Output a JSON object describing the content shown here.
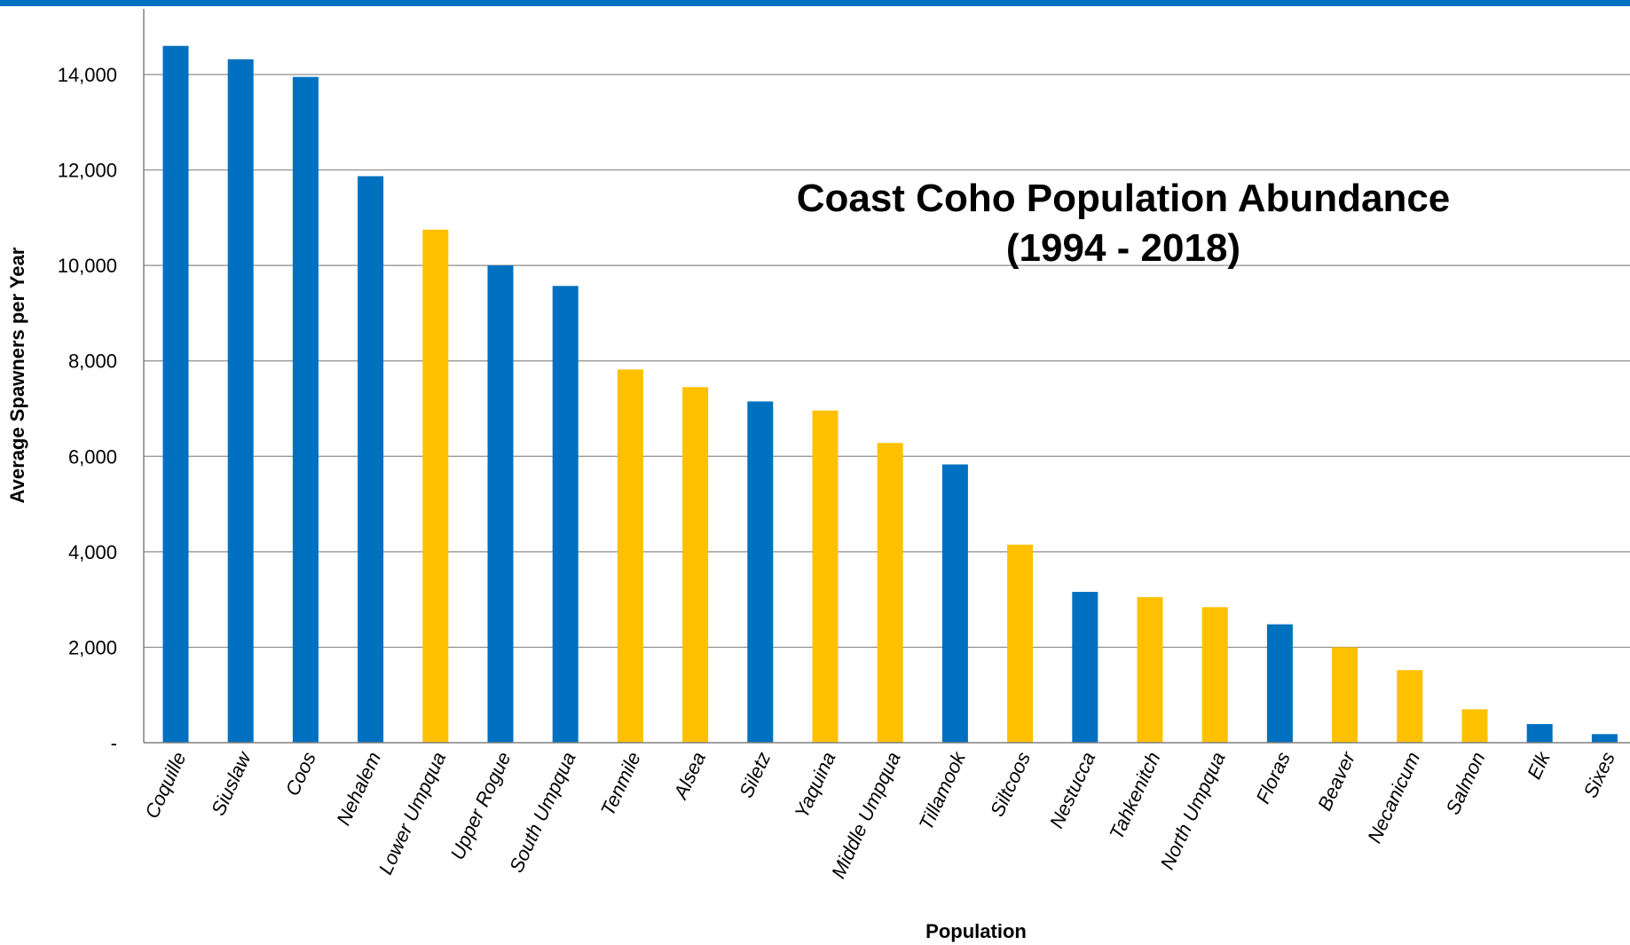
{
  "chart_data": {
    "type": "bar",
    "title": "Coast Coho Population Abundance",
    "subtitle": "(1994 - 2018)",
    "xlabel": "Population",
    "ylabel": "Average Spawners per Year",
    "ylim": [
      0,
      15000
    ],
    "yticks": [
      0,
      2000,
      4000,
      6000,
      8000,
      10000,
      12000,
      14000
    ],
    "ytick_labels": [
      "-",
      "2,000",
      "4,000",
      "6,000",
      "8,000",
      "10,000",
      "12,000",
      "14,000"
    ],
    "grid": true,
    "legend": "none",
    "colors": {
      "blue": "#0070C0",
      "yellow": "#FFC000",
      "header_bar": "#0070C0"
    },
    "categories": [
      "Coquille",
      "Siuslaw",
      "Coos",
      "Nehalem",
      "Lower Umpqua",
      "Upper Rogue",
      "South Umpqua",
      "Tenmile",
      "Alsea",
      "Siletz",
      "Yaquina",
      "Middle Umpqua",
      "Tillamook",
      "Siltcoos",
      "Nestucca",
      "Tahkenitch",
      "North Umpqua",
      "Floras",
      "Beaver",
      "Necanicum",
      "Salmon",
      "Elk",
      "Sixes"
    ],
    "values": [
      14600,
      14320,
      13950,
      11870,
      10750,
      10000,
      9570,
      7820,
      7450,
      7150,
      6960,
      6280,
      5830,
      4150,
      3160,
      3050,
      2840,
      2480,
      2000,
      1520,
      700,
      390,
      180
    ],
    "bar_colors": [
      "blue",
      "blue",
      "blue",
      "blue",
      "yellow",
      "blue",
      "blue",
      "yellow",
      "yellow",
      "blue",
      "yellow",
      "yellow",
      "blue",
      "yellow",
      "blue",
      "yellow",
      "yellow",
      "blue",
      "yellow",
      "yellow",
      "yellow",
      "blue",
      "blue"
    ]
  }
}
